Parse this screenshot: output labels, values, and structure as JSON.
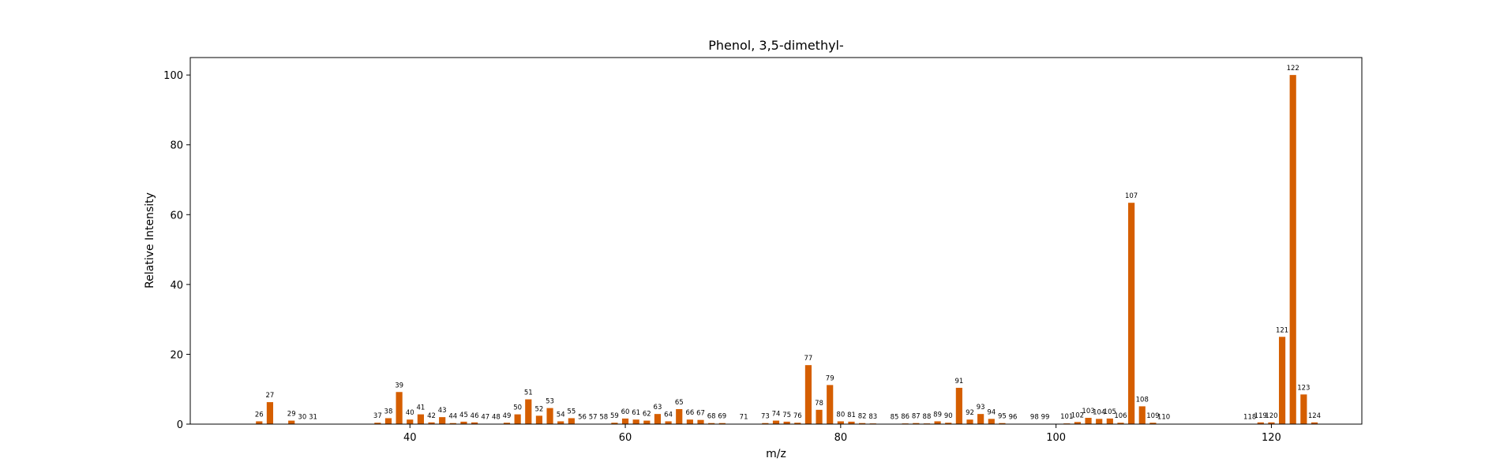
{
  "chart_data": {
    "type": "bar",
    "title": "Phenol, 3,5-dimethyl-",
    "xlabel": "m/z",
    "ylabel": "Relative Intensity",
    "xlim": [
      19.6,
      128.4
    ],
    "ylim": [
      0,
      105
    ],
    "xticks": [
      40,
      60,
      80,
      100,
      120
    ],
    "yticks": [
      0,
      20,
      40,
      60,
      80,
      100
    ],
    "bar_color": "#d55e00",
    "grid": false,
    "legend": "none",
    "points": [
      {
        "x": 26,
        "y": 0.8
      },
      {
        "x": 27,
        "y": 6.3
      },
      {
        "x": 29,
        "y": 1.0
      },
      {
        "x": 30,
        "y": 0.1
      },
      {
        "x": 31,
        "y": 0.1
      },
      {
        "x": 37,
        "y": 0.4
      },
      {
        "x": 38,
        "y": 1.7
      },
      {
        "x": 39,
        "y": 9.2
      },
      {
        "x": 40,
        "y": 1.3
      },
      {
        "x": 41,
        "y": 2.8
      },
      {
        "x": 42,
        "y": 0.5
      },
      {
        "x": 43,
        "y": 2.0
      },
      {
        "x": 44,
        "y": 0.3
      },
      {
        "x": 45,
        "y": 0.7
      },
      {
        "x": 46,
        "y": 0.5
      },
      {
        "x": 47,
        "y": 0.1
      },
      {
        "x": 48,
        "y": 0.1
      },
      {
        "x": 49,
        "y": 0.4
      },
      {
        "x": 50,
        "y": 2.8
      },
      {
        "x": 51,
        "y": 7.1
      },
      {
        "x": 52,
        "y": 2.4
      },
      {
        "x": 53,
        "y": 4.6
      },
      {
        "x": 54,
        "y": 0.8
      },
      {
        "x": 55,
        "y": 1.7
      },
      {
        "x": 56,
        "y": 0.1
      },
      {
        "x": 57,
        "y": 0.1
      },
      {
        "x": 58,
        "y": 0.1
      },
      {
        "x": 59,
        "y": 0.4
      },
      {
        "x": 60,
        "y": 1.6
      },
      {
        "x": 61,
        "y": 1.3
      },
      {
        "x": 62,
        "y": 1.0
      },
      {
        "x": 63,
        "y": 2.9
      },
      {
        "x": 64,
        "y": 0.8
      },
      {
        "x": 65,
        "y": 4.3
      },
      {
        "x": 66,
        "y": 1.3
      },
      {
        "x": 67,
        "y": 1.2
      },
      {
        "x": 68,
        "y": 0.3
      },
      {
        "x": 69,
        "y": 0.3
      },
      {
        "x": 71,
        "y": 0.1
      },
      {
        "x": 73,
        "y": 0.3
      },
      {
        "x": 74,
        "y": 1.0
      },
      {
        "x": 75,
        "y": 0.7
      },
      {
        "x": 76,
        "y": 0.4
      },
      {
        "x": 77,
        "y": 16.9
      },
      {
        "x": 78,
        "y": 4.1
      },
      {
        "x": 79,
        "y": 11.2
      },
      {
        "x": 80,
        "y": 0.8
      },
      {
        "x": 81,
        "y": 0.7
      },
      {
        "x": 82,
        "y": 0.3
      },
      {
        "x": 83,
        "y": 0.2
      },
      {
        "x": 85,
        "y": 0.1
      },
      {
        "x": 86,
        "y": 0.2
      },
      {
        "x": 87,
        "y": 0.3
      },
      {
        "x": 88,
        "y": 0.2
      },
      {
        "x": 89,
        "y": 0.8
      },
      {
        "x": 90,
        "y": 0.4
      },
      {
        "x": 91,
        "y": 10.4
      },
      {
        "x": 92,
        "y": 1.3
      },
      {
        "x": 93,
        "y": 2.9
      },
      {
        "x": 94,
        "y": 1.5
      },
      {
        "x": 95,
        "y": 0.3
      },
      {
        "x": 96,
        "y": 0.1
      },
      {
        "x": 98,
        "y": 0.1
      },
      {
        "x": 99,
        "y": 0.1
      },
      {
        "x": 101,
        "y": 0.2
      },
      {
        "x": 102,
        "y": 0.6
      },
      {
        "x": 103,
        "y": 1.8
      },
      {
        "x": 104,
        "y": 1.5
      },
      {
        "x": 105,
        "y": 1.6
      },
      {
        "x": 106,
        "y": 0.4
      },
      {
        "x": 107,
        "y": 63.4
      },
      {
        "x": 108,
        "y": 5.1
      },
      {
        "x": 109,
        "y": 0.4
      },
      {
        "x": 110,
        "y": 0.1
      },
      {
        "x": 118,
        "y": 0.1
      },
      {
        "x": 119,
        "y": 0.5
      },
      {
        "x": 120,
        "y": 0.5
      },
      {
        "x": 121,
        "y": 25.0
      },
      {
        "x": 122,
        "y": 100.0
      },
      {
        "x": 123,
        "y": 8.5
      },
      {
        "x": 124,
        "y": 0.5
      }
    ]
  }
}
